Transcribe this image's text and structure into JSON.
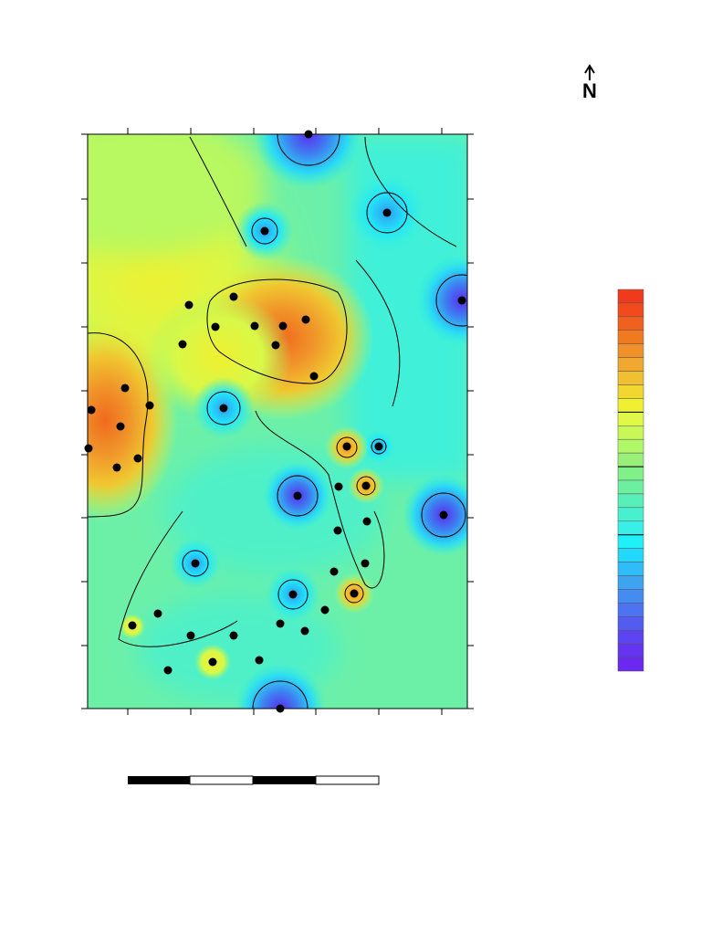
{
  "north_arrow": {
    "label": "N"
  }
}
